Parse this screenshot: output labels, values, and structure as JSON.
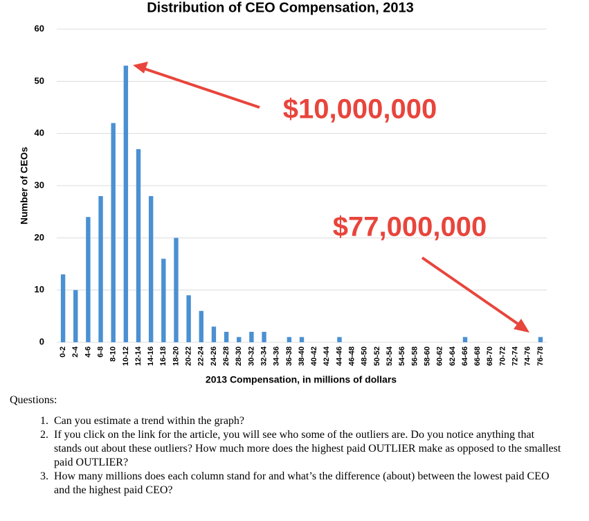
{
  "chart_data": {
    "type": "bar",
    "title": "Distribution of CEO Compensation, 2013",
    "x_label": "2013 Compensation, in millions of dollars",
    "y_label": "Number of CEOs",
    "categories": [
      "0-2",
      "2-4",
      "4-6",
      "6-8",
      "8-10",
      "10-12",
      "12-14",
      "14-16",
      "16-18",
      "18-20",
      "20-22",
      "22-24",
      "24-26",
      "26-28",
      "28-30",
      "30-32",
      "32-34",
      "34-36",
      "36-38",
      "38-40",
      "40-42",
      "42-44",
      "44-46",
      "46-48",
      "48-50",
      "50-52",
      "52-54",
      "54-56",
      "56-58",
      "58-60",
      "60-62",
      "62-64",
      "64-66",
      "66-68",
      "68-70",
      "70-72",
      "72-74",
      "74-76",
      "76-78"
    ],
    "values": [
      13,
      10,
      24,
      28,
      42,
      53,
      37,
      28,
      16,
      20,
      9,
      6,
      3,
      2,
      1,
      2,
      2,
      0,
      1,
      1,
      0,
      0,
      1,
      0,
      0,
      0,
      0,
      0,
      0,
      0,
      0,
      0,
      1,
      0,
      0,
      0,
      0,
      0,
      1
    ],
    "color": "#4a90d2",
    "ylim": [
      0,
      60
    ],
    "yticks": [
      0,
      10,
      20,
      30,
      40,
      50,
      60
    ],
    "grid": true,
    "annotations": [
      "$10,000,000",
      "$77,000,000"
    ],
    "annotation_color": "#e8453c"
  },
  "questions": {
    "heading": "Questions:",
    "items": [
      "Can you estimate a trend within the graph?",
      "If you click on the link for the article, you will see who some of the outliers are. Do you notice anything that stands out about these outliers? How much more does the highest paid OUTLIER make as opposed to the smallest paid OUTLIER?",
      "How many millions does each column stand for and what’s the difference (about) between the lowest paid CEO and the highest paid CEO?"
    ]
  }
}
